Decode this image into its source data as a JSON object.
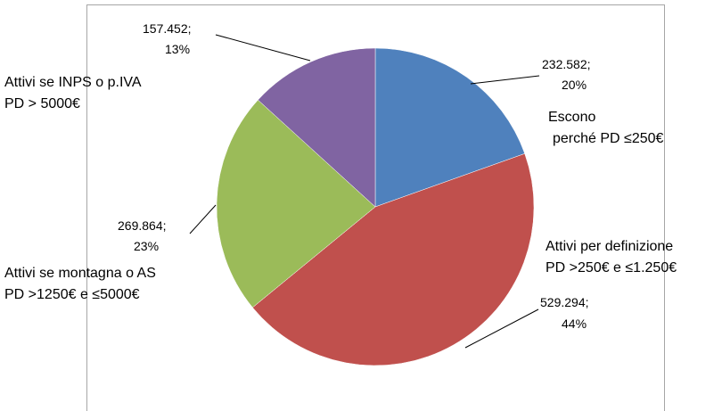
{
  "chart_data": {
    "type": "pie",
    "categories": [
      "Escono\nperché PD ≤250€",
      "Attivi per definizione\nPD >250€ e ≤1.250€",
      "Attivi se montagna o AS\nPD >1250€ e ≤5000€",
      "Attivi se INPS o p.IVA\nPD > 5000€"
    ],
    "values": [
      232582,
      529294,
      269864,
      157452
    ],
    "value_labels": [
      "232.582;",
      "529.294;",
      "269.864;",
      "157.452;"
    ],
    "percents": [
      20,
      44,
      23,
      13
    ],
    "percent_labels": [
      "20%",
      "44%",
      "23%",
      "13%"
    ],
    "colors": [
      "#4f81bd",
      "#c0504d",
      "#9bbb59",
      "#8064a2"
    ]
  }
}
